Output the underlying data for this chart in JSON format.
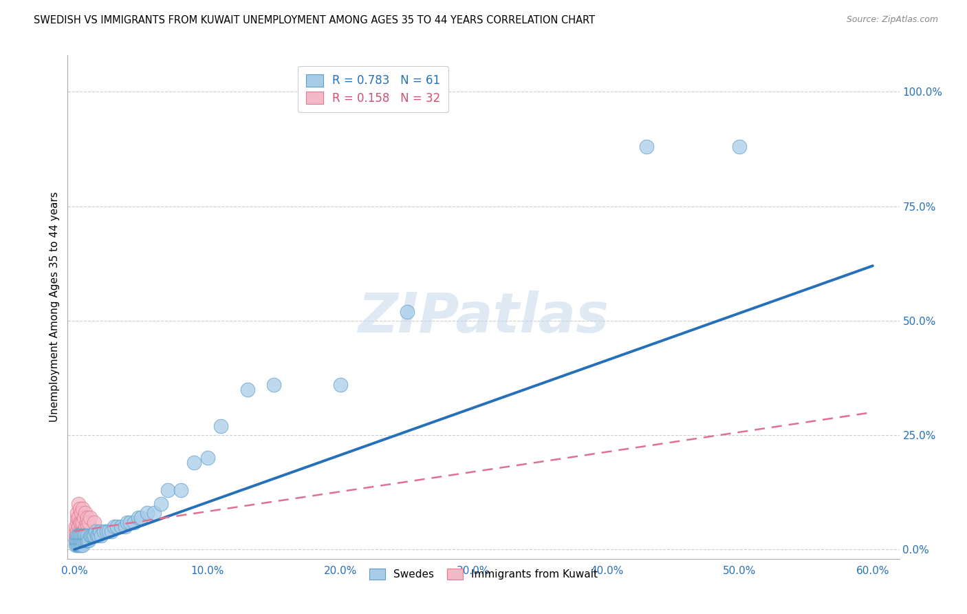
{
  "title": "SWEDISH VS IMMIGRANTS FROM KUWAIT UNEMPLOYMENT AMONG AGES 35 TO 44 YEARS CORRELATION CHART",
  "source": "Source: ZipAtlas.com",
  "ylabel": "Unemployment Among Ages 35 to 44 years",
  "xlim": [
    -0.005,
    0.62
  ],
  "ylim": [
    -0.02,
    1.08
  ],
  "xticks": [
    0.0,
    0.1,
    0.2,
    0.3,
    0.4,
    0.5,
    0.6
  ],
  "xticklabels": [
    "0.0%",
    "10.0%",
    "20.0%",
    "30.0%",
    "40.0%",
    "50.0%",
    "60.0%"
  ],
  "yticks": [
    0.0,
    0.25,
    0.5,
    0.75,
    1.0
  ],
  "yticklabels": [
    "0.0%",
    "25.0%",
    "50.0%",
    "75.0%",
    "100.0%"
  ],
  "blue_color": "#a8cce8",
  "blue_edge_color": "#5a9ec8",
  "pink_color": "#f5b8c8",
  "pink_edge_color": "#e07890",
  "blue_line_color": "#2570b8",
  "pink_line_color": "#e07090",
  "legend_label_swedes": "Swedes",
  "legend_label_kuwait": "Immigrants from Kuwait",
  "watermark": "ZIPatlas",
  "blue_r": 0.783,
  "pink_r": 0.158,
  "blue_n": 61,
  "pink_n": 32,
  "blue_x": [
    0.001,
    0.001,
    0.002,
    0.002,
    0.002,
    0.003,
    0.003,
    0.003,
    0.004,
    0.004,
    0.004,
    0.005,
    0.005,
    0.005,
    0.006,
    0.006,
    0.006,
    0.007,
    0.007,
    0.008,
    0.008,
    0.009,
    0.01,
    0.01,
    0.011,
    0.012,
    0.013,
    0.014,
    0.015,
    0.016,
    0.017,
    0.018,
    0.019,
    0.02,
    0.022,
    0.024,
    0.026,
    0.028,
    0.03,
    0.032,
    0.035,
    0.038,
    0.04,
    0.042,
    0.045,
    0.048,
    0.05,
    0.055,
    0.06,
    0.065,
    0.07,
    0.08,
    0.09,
    0.1,
    0.11,
    0.13,
    0.15,
    0.2,
    0.25,
    0.43,
    0.5
  ],
  "blue_y": [
    0.01,
    0.02,
    0.01,
    0.02,
    0.03,
    0.01,
    0.02,
    0.03,
    0.01,
    0.02,
    0.03,
    0.01,
    0.02,
    0.03,
    0.01,
    0.02,
    0.03,
    0.02,
    0.03,
    0.02,
    0.03,
    0.02,
    0.02,
    0.03,
    0.02,
    0.03,
    0.03,
    0.03,
    0.03,
    0.04,
    0.03,
    0.03,
    0.04,
    0.03,
    0.04,
    0.04,
    0.04,
    0.04,
    0.05,
    0.05,
    0.05,
    0.05,
    0.06,
    0.06,
    0.06,
    0.07,
    0.07,
    0.08,
    0.08,
    0.1,
    0.13,
    0.13,
    0.19,
    0.2,
    0.27,
    0.35,
    0.36,
    0.36,
    0.52,
    0.88,
    0.88
  ],
  "pink_x": [
    0.001,
    0.001,
    0.001,
    0.001,
    0.002,
    0.002,
    0.002,
    0.002,
    0.002,
    0.003,
    0.003,
    0.003,
    0.003,
    0.004,
    0.004,
    0.004,
    0.005,
    0.005,
    0.005,
    0.006,
    0.006,
    0.006,
    0.007,
    0.007,
    0.008,
    0.008,
    0.009,
    0.01,
    0.01,
    0.011,
    0.012,
    0.015
  ],
  "pink_y": [
    0.02,
    0.03,
    0.04,
    0.05,
    0.02,
    0.04,
    0.06,
    0.07,
    0.08,
    0.03,
    0.05,
    0.07,
    0.1,
    0.04,
    0.06,
    0.09,
    0.03,
    0.06,
    0.08,
    0.04,
    0.06,
    0.09,
    0.04,
    0.07,
    0.05,
    0.08,
    0.06,
    0.05,
    0.07,
    0.06,
    0.07,
    0.06
  ],
  "blue_trend_x": [
    0.0,
    0.6
  ],
  "blue_trend_y": [
    0.0,
    0.62
  ],
  "pink_trend_x": [
    0.0,
    0.6
  ],
  "pink_trend_y": [
    0.04,
    0.3
  ]
}
